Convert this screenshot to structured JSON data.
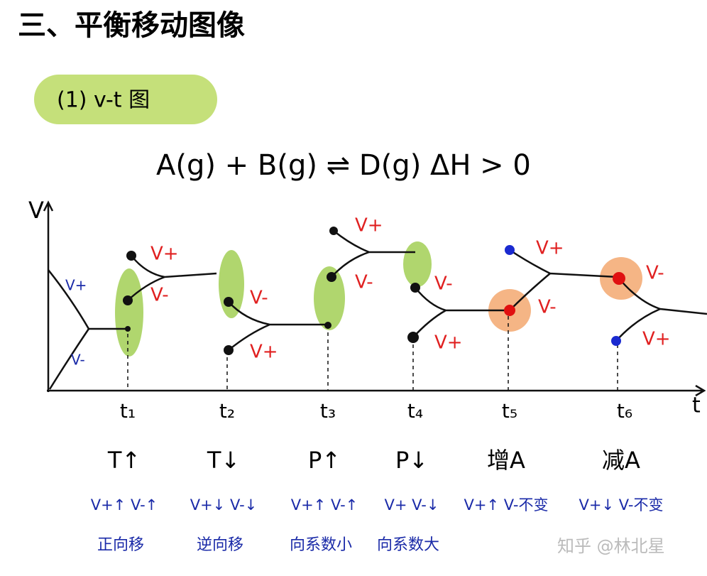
{
  "header": {
    "title": "三、平衡移动图像",
    "section": "(1) v-t 图",
    "equation": "A(g) + B(g) ⇌ D(g)  ΔH > 0"
  },
  "axes": {
    "y": "V",
    "x": "t"
  },
  "times": [
    "t₁",
    "t₂",
    "t₃",
    "t₄",
    "t₅",
    "t₆"
  ],
  "curve_labels": [
    "V+",
    "V-",
    "V+",
    "V-",
    "V-",
    "V+",
    "V+",
    "V-",
    "V-",
    "V+",
    "V+",
    "V-",
    "V-",
    "V+"
  ],
  "conditions": [
    "T↑",
    "T↓",
    "P↑",
    "P↓",
    "增A",
    "减A"
  ],
  "rate_changes": [
    "V+↑ V-↑",
    "V+↓ V-↓",
    "V+↑ V-↑",
    "V+ V-↓",
    "V+↑ V-不变",
    "V+↓ V-不变"
  ],
  "shifts": [
    "正向移",
    "逆向移",
    "向系数小",
    "向系数大"
  ],
  "watermark": "知乎 @林北星"
}
